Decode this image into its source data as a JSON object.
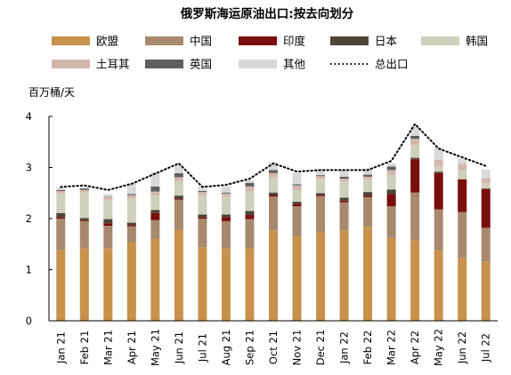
{
  "chart_data": {
    "type": "bar",
    "title": "俄罗斯海运原油出口:按去向划分",
    "ylabel": "百万桶/天",
    "ylim": [
      0,
      4
    ],
    "yticks": [
      0,
      1,
      2,
      3,
      4
    ],
    "categories": [
      "Jan 21",
      "Feb 21",
      "Mar 21",
      "Apr 21",
      "May 21",
      "Jun 21",
      "Jul 21",
      "Aug 21",
      "Sep 21",
      "Oct 21",
      "Nov 21",
      "Dec 21",
      "Jan 22",
      "Feb 22",
      "Mar 22",
      "Apr 22",
      "May 22",
      "Jun 22",
      "Jul 22"
    ],
    "series": [
      {
        "name": "欧盟",
        "color": "#c8914c",
        "values": [
          1.38,
          1.42,
          1.42,
          1.53,
          1.6,
          1.78,
          1.44,
          1.42,
          1.42,
          1.77,
          1.65,
          1.73,
          1.77,
          1.84,
          1.62,
          1.58,
          1.38,
          1.23,
          1.16
        ]
      },
      {
        "name": "中国",
        "color": "#a8896e",
        "values": [
          0.62,
          0.53,
          0.44,
          0.32,
          0.37,
          0.59,
          0.56,
          0.53,
          0.57,
          0.66,
          0.59,
          0.71,
          0.55,
          0.58,
          0.62,
          0.93,
          0.8,
          0.9,
          0.66
        ]
      },
      {
        "name": "印度",
        "color": "#7a0e0c",
        "values": [
          0.03,
          0.02,
          0.05,
          0.02,
          0.14,
          0.02,
          0.03,
          0.08,
          0.08,
          0.03,
          0.05,
          0.02,
          0.03,
          0.03,
          0.24,
          0.65,
          0.71,
          0.64,
          0.76
        ]
      },
      {
        "name": "日本",
        "color": "#4c4538",
        "values": [
          0.08,
          0.04,
          0.08,
          0.05,
          0.06,
          0.06,
          0.05,
          0.05,
          0.08,
          0.05,
          0.04,
          0.04,
          0.06,
          0.07,
          0.09,
          0.03,
          0.03,
          0.0,
          0.01
        ]
      },
      {
        "name": "韩国",
        "color": "#cfd0bc",
        "values": [
          0.38,
          0.5,
          0.38,
          0.48,
          0.28,
          0.28,
          0.38,
          0.35,
          0.38,
          0.3,
          0.22,
          0.28,
          0.32,
          0.25,
          0.28,
          0.25,
          0.1,
          0.18,
          0.1
        ]
      },
      {
        "name": "土耳其",
        "color": "#d2b8ac",
        "values": [
          0.05,
          0.05,
          0.05,
          0.06,
          0.08,
          0.08,
          0.06,
          0.06,
          0.1,
          0.08,
          0.1,
          0.05,
          0.05,
          0.05,
          0.1,
          0.12,
          0.13,
          0.12,
          0.1
        ]
      },
      {
        "name": "英国",
        "color": "#5f5f5f",
        "values": [
          0.02,
          0.03,
          0.01,
          0.02,
          0.1,
          0.08,
          0.02,
          0.02,
          0.07,
          0.06,
          0.02,
          0.02,
          0.04,
          0.04,
          0.07,
          0.06,
          0.0,
          0.0,
          0.0
        ]
      },
      {
        "name": "其他",
        "color": "#d9d9d9",
        "values": [
          0.05,
          0.03,
          0.05,
          0.22,
          0.28,
          0.16,
          0.1,
          0.12,
          0.05,
          0.15,
          0.22,
          0.12,
          0.14,
          0.12,
          0.06,
          0.18,
          0.25,
          0.1,
          0.17
        ]
      }
    ],
    "total": {
      "name": "总出口",
      "style": "dotted",
      "color": "#000000",
      "values": [
        2.62,
        2.65,
        2.56,
        2.68,
        2.88,
        3.08,
        2.62,
        2.66,
        2.78,
        3.08,
        2.92,
        2.95,
        2.95,
        2.95,
        3.13,
        3.85,
        3.37,
        3.2,
        3.03
      ]
    },
    "legend_position": "top",
    "grid": false
  }
}
